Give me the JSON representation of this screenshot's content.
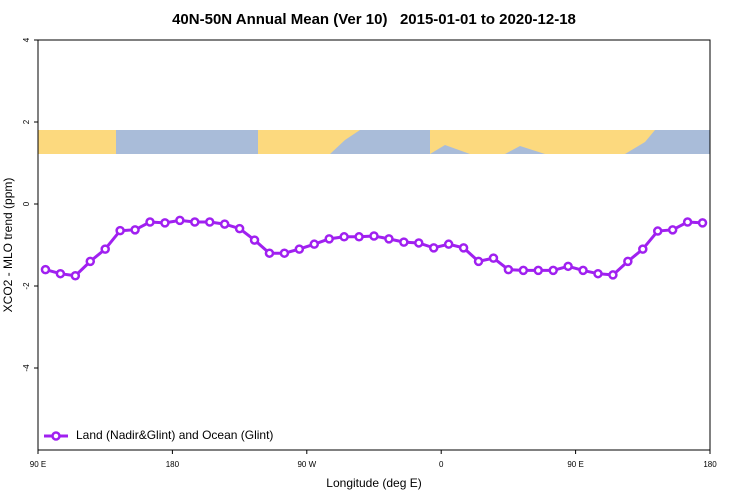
{
  "chart_data": {
    "type": "line",
    "title": "40N-50N Annual Mean (Ver 10)   2015-01-01 to 2020-12-18",
    "x_label": "Longitude (deg E)",
    "y_label": "XCO2 - MLO trend (ppm)",
    "xlim": [
      90,
      540
    ],
    "ylim": [
      -6,
      4
    ],
    "xticks": [
      {
        "value": 90,
        "label": "90 E"
      },
      {
        "value": 180,
        "label": "180"
      },
      {
        "value": 270,
        "label": "90 W"
      },
      {
        "value": 360,
        "label": "0"
      },
      {
        "value": 450,
        "label": "90 E"
      },
      {
        "value": 540,
        "label": "180"
      }
    ],
    "yticks": [
      -4,
      -2,
      0,
      2,
      4
    ],
    "legend": "bottom-left",
    "x": [
      95,
      105,
      115,
      125,
      135,
      145,
      155,
      165,
      175,
      185,
      195,
      205,
      215,
      225,
      235,
      245,
      255,
      265,
      275,
      285,
      295,
      305,
      315,
      325,
      335,
      345,
      355,
      365,
      375,
      385,
      395,
      405,
      415,
      425,
      435,
      445,
      455,
      465,
      475,
      485,
      495,
      505,
      515,
      525,
      535
    ],
    "series": [
      {
        "name": "Land (Nadir&Glint) and Ocean (Glint)",
        "color": "#a020f0",
        "values": [
          -1.6,
          -1.7,
          -1.75,
          -1.4,
          -1.1,
          -0.65,
          -0.63,
          -0.44,
          -0.46,
          -0.4,
          -0.44,
          -0.44,
          -0.49,
          -0.6,
          -0.88,
          -1.2,
          -1.2,
          -1.1,
          -0.98,
          -0.85,
          -0.8,
          -0.8,
          -0.78,
          -0.85,
          -0.93,
          -0.95,
          -1.07,
          -0.98,
          -1.07,
          -1.4,
          -1.32,
          -1.6,
          -1.62,
          -1.62,
          -1.62,
          -1.52,
          -1.62,
          -1.7,
          -1.73,
          -1.4,
          -1.1,
          -0.66,
          -0.63,
          -0.44,
          -0.46
        ]
      }
    ]
  }
}
